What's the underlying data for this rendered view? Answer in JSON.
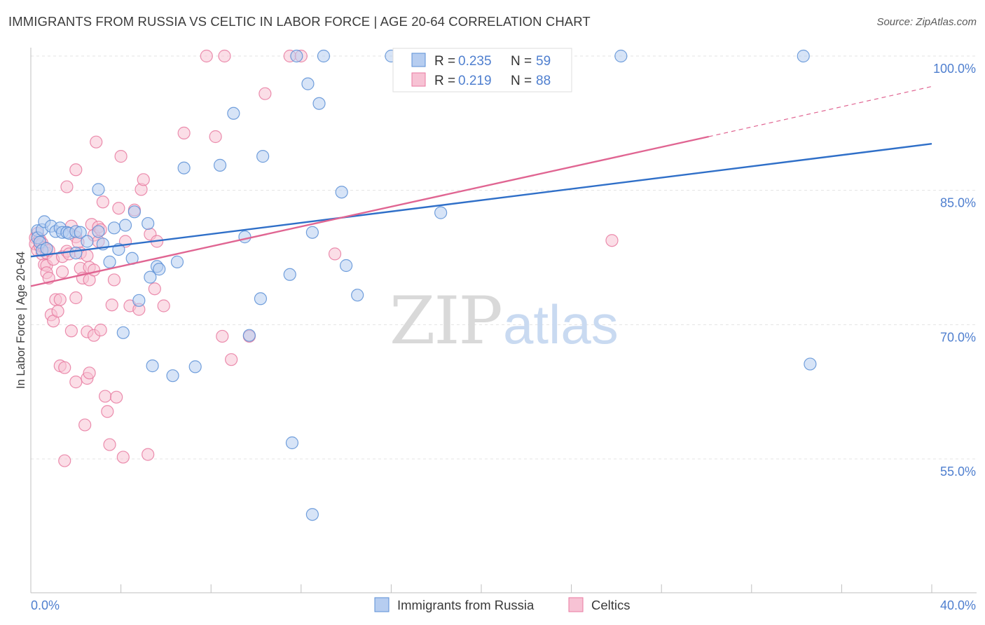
{
  "header": {
    "title": "IMMIGRANTS FROM RUSSIA VS CELTIC IN LABOR FORCE | AGE 20-64 CORRELATION CHART",
    "source": "Source: ZipAtlas.com"
  },
  "watermark": {
    "zip": "ZIP",
    "atlas": "atlas"
  },
  "colors": {
    "blue": "#5b8fd6",
    "blue_fill": "#b6cdf0",
    "pink": "#e87aa0",
    "pink_fill": "#f7c2d4",
    "blue_line": "#2f6fc8",
    "pink_line": "#e06592",
    "tick_label": "#4f7fcf"
  },
  "chart_data": {
    "type": "scatter",
    "title": "IMMIGRANTS FROM RUSSIA VS CELTIC IN LABOR FORCE | AGE 20-64 CORRELATION CHART",
    "xlabel": "",
    "ylabel": "In Labor Force | Age 20-64",
    "xlim": [
      0,
      40
    ],
    "ylim": [
      40,
      101.5
    ],
    "x_tick_labels": [
      {
        "value": 0,
        "label": "0.0%"
      },
      {
        "value": 40,
        "label": "40.0%"
      }
    ],
    "y_tick_labels": [
      {
        "value": 100,
        "label": "100.0%"
      },
      {
        "value": 85,
        "label": "85.0%"
      },
      {
        "value": 70,
        "label": "70.0%"
      },
      {
        "value": 55,
        "label": "55.0%"
      }
    ],
    "legend": [
      {
        "name": "Immigrants from Russia",
        "r_label": "R =",
        "r_value": "0.235",
        "n_label": "N =",
        "n_value": "59",
        "color": "blue"
      },
      {
        "name": "Celtics",
        "r_label": "R =",
        "r_value": "0.219",
        "n_label": "N =",
        "n_value": "88",
        "color": "pink"
      }
    ],
    "series": [
      {
        "name": "Immigrants from Russia",
        "color": "blue",
        "trend": {
          "x0": 0,
          "y0": 77.6,
          "x1": 40,
          "y1": 90.2
        },
        "points": [
          [
            0.3,
            80.5
          ],
          [
            0.3,
            79.7
          ],
          [
            0.4,
            79.2
          ],
          [
            0.5,
            80.6
          ],
          [
            0.5,
            78.3
          ],
          [
            0.6,
            81.5
          ],
          [
            0.7,
            78.5
          ],
          [
            0.9,
            81.0
          ],
          [
            1.1,
            80.4
          ],
          [
            1.3,
            80.8
          ],
          [
            1.4,
            80.3
          ],
          [
            1.6,
            80.3
          ],
          [
            1.7,
            80.2
          ],
          [
            2.0,
            80.4
          ],
          [
            2.2,
            80.3
          ],
          [
            2.0,
            78.0
          ],
          [
            2.5,
            79.3
          ],
          [
            3.0,
            85.1
          ],
          [
            3.0,
            80.4
          ],
          [
            3.2,
            79.0
          ],
          [
            3.5,
            77.0
          ],
          [
            3.7,
            80.8
          ],
          [
            3.9,
            78.4
          ],
          [
            4.1,
            69.1
          ],
          [
            4.2,
            81.1
          ],
          [
            4.5,
            77.4
          ],
          [
            4.6,
            82.6
          ],
          [
            4.8,
            72.7
          ],
          [
            5.2,
            81.3
          ],
          [
            5.3,
            75.3
          ],
          [
            5.4,
            65.4
          ],
          [
            5.6,
            76.5
          ],
          [
            5.7,
            76.2
          ],
          [
            6.3,
            64.3
          ],
          [
            6.5,
            77.0
          ],
          [
            6.8,
            87.5
          ],
          [
            7.3,
            65.3
          ],
          [
            8.4,
            87.8
          ],
          [
            9.0,
            93.6
          ],
          [
            9.5,
            79.8
          ],
          [
            9.7,
            68.8
          ],
          [
            10.2,
            72.9
          ],
          [
            10.3,
            88.8
          ],
          [
            11.5,
            75.6
          ],
          [
            11.6,
            56.8
          ],
          [
            11.8,
            100.0
          ],
          [
            12.3,
            96.9
          ],
          [
            12.5,
            48.8
          ],
          [
            12.5,
            80.3
          ],
          [
            12.8,
            94.7
          ],
          [
            13.0,
            100.0
          ],
          [
            13.8,
            84.8
          ],
          [
            14.0,
            76.6
          ],
          [
            14.5,
            73.3
          ],
          [
            16.0,
            100.0
          ],
          [
            18.2,
            82.5
          ],
          [
            26.2,
            100.0
          ],
          [
            34.3,
            100.0
          ],
          [
            34.6,
            65.6
          ]
        ]
      },
      {
        "name": "Celtics",
        "color": "pink",
        "trend": {
          "x0": 0,
          "y0": 74.3,
          "x1": 30.1,
          "y1": 91.0,
          "dash_x1": 40,
          "dash_y1": 96.6
        },
        "points": [
          [
            0.2,
            79.7
          ],
          [
            0.2,
            79.0
          ],
          [
            0.3,
            78.3
          ],
          [
            0.3,
            80.2
          ],
          [
            0.4,
            79.5
          ],
          [
            0.4,
            78.8
          ],
          [
            0.5,
            77.9
          ],
          [
            0.5,
            79.1
          ],
          [
            0.6,
            78.6
          ],
          [
            0.6,
            76.7
          ],
          [
            0.7,
            78.0
          ],
          [
            0.7,
            76.6
          ],
          [
            0.7,
            75.8
          ],
          [
            0.8,
            78.3
          ],
          [
            0.8,
            75.2
          ],
          [
            0.9,
            71.1
          ],
          [
            1.0,
            70.4
          ],
          [
            1.0,
            77.3
          ],
          [
            1.1,
            72.8
          ],
          [
            1.2,
            71.5
          ],
          [
            1.3,
            65.4
          ],
          [
            1.3,
            72.8
          ],
          [
            1.4,
            75.9
          ],
          [
            1.4,
            77.6
          ],
          [
            1.5,
            65.2
          ],
          [
            1.5,
            54.8
          ],
          [
            1.6,
            85.4
          ],
          [
            1.6,
            78.2
          ],
          [
            1.7,
            77.9
          ],
          [
            1.8,
            69.3
          ],
          [
            1.8,
            81.0
          ],
          [
            2.0,
            79.8
          ],
          [
            2.0,
            73.0
          ],
          [
            2.0,
            87.3
          ],
          [
            2.1,
            79.2
          ],
          [
            2.2,
            78.0
          ],
          [
            2.2,
            76.3
          ],
          [
            2.3,
            75.2
          ],
          [
            2.4,
            58.8
          ],
          [
            2.5,
            69.2
          ],
          [
            2.5,
            77.7
          ],
          [
            2.5,
            64.0
          ],
          [
            2.6,
            64.6
          ],
          [
            2.6,
            76.4
          ],
          [
            2.6,
            75.0
          ],
          [
            2.7,
            81.2
          ],
          [
            2.8,
            80.0
          ],
          [
            2.8,
            68.8
          ],
          [
            2.8,
            76.1
          ],
          [
            2.9,
            90.4
          ],
          [
            3.0,
            80.9
          ],
          [
            3.0,
            79.3
          ],
          [
            3.1,
            80.6
          ],
          [
            3.1,
            69.4
          ],
          [
            3.2,
            83.7
          ],
          [
            3.3,
            62.0
          ],
          [
            3.4,
            60.3
          ],
          [
            3.5,
            56.6
          ],
          [
            3.6,
            72.2
          ],
          [
            3.7,
            75.0
          ],
          [
            3.8,
            61.9
          ],
          [
            3.9,
            83.0
          ],
          [
            4.0,
            88.8
          ],
          [
            4.1,
            55.2
          ],
          [
            4.2,
            79.3
          ],
          [
            4.4,
            72.1
          ],
          [
            4.6,
            82.8
          ],
          [
            4.8,
            71.7
          ],
          [
            4.9,
            85.1
          ],
          [
            5.0,
            86.2
          ],
          [
            5.2,
            55.5
          ],
          [
            5.3,
            80.1
          ],
          [
            5.5,
            74.0
          ],
          [
            5.6,
            79.3
          ],
          [
            5.9,
            72.1
          ],
          [
            6.8,
            91.4
          ],
          [
            8.2,
            91.0
          ],
          [
            8.5,
            68.7
          ],
          [
            8.9,
            66.1
          ],
          [
            9.7,
            68.7
          ],
          [
            10.4,
            95.8
          ],
          [
            11.5,
            100.0
          ],
          [
            12.0,
            100.0
          ],
          [
            7.8,
            100.0
          ],
          [
            8.6,
            100.0
          ],
          [
            13.5,
            77.9
          ],
          [
            25.8,
            79.4
          ],
          [
            2.0,
            63.6
          ]
        ]
      }
    ]
  }
}
